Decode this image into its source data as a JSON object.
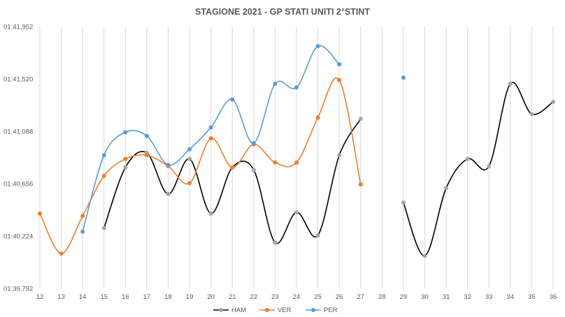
{
  "chart_data": {
    "type": "line",
    "title": "STAGIONE 2021 - GP STATI UNITI 2°STINT",
    "xlabel": "",
    "ylabel": "",
    "x": [
      12,
      13,
      14,
      15,
      16,
      17,
      18,
      19,
      20,
      21,
      22,
      23,
      24,
      25,
      26,
      27,
      28,
      29,
      30,
      31,
      32,
      33,
      34,
      35,
      36
    ],
    "y_ticks": [
      "01:39,792",
      "01:40,224",
      "01:40,656",
      "01:41,088",
      "01:41,520",
      "01:41,952"
    ],
    "ylim": [
      99.792,
      101.952
    ],
    "y_tick_step": 0.432,
    "grid": "vertical",
    "legend_position": "bottom",
    "series": [
      {
        "name": "HAM",
        "color": "#000000",
        "marker_color": "#a5a5a5",
        "values": [
          null,
          null,
          null,
          100.29,
          100.79,
          100.91,
          100.57,
          100.86,
          100.41,
          100.79,
          100.77,
          100.17,
          100.42,
          100.23,
          100.89,
          101.19,
          null,
          100.5,
          100.06,
          100.62,
          100.86,
          100.8,
          101.48,
          101.23,
          101.33
        ]
      },
      {
        "name": "VER",
        "color": "#ed7d31",
        "marker_color": "#ed7d31",
        "values": [
          100.41,
          100.08,
          100.39,
          100.72,
          100.86,
          100.89,
          100.8,
          100.66,
          101.03,
          100.79,
          100.98,
          100.83,
          100.83,
          101.2,
          101.51,
          100.65,
          null,
          null,
          null,
          null,
          null,
          null,
          null,
          null,
          null
        ]
      },
      {
        "name": "PER",
        "color": "#5b9bd5",
        "marker_color": "#5b9bd5",
        "values": [
          null,
          null,
          100.26,
          100.89,
          101.08,
          101.05,
          100.81,
          100.94,
          101.12,
          101.35,
          100.99,
          101.48,
          101.45,
          101.79,
          101.64,
          null,
          null,
          101.53,
          null,
          null,
          null,
          null,
          null,
          null,
          null
        ]
      }
    ]
  }
}
